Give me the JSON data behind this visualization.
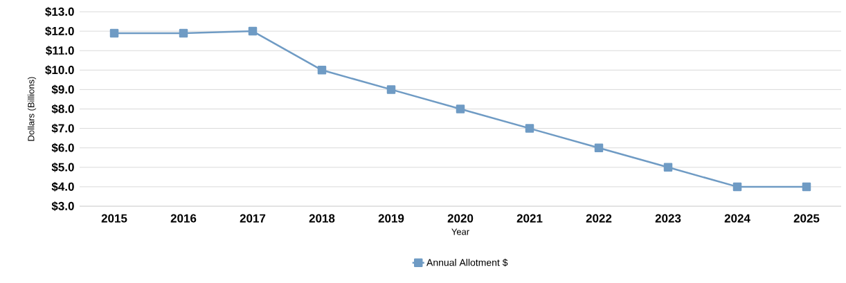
{
  "chart_data": {
    "type": "line",
    "xlabel": "Year",
    "ylabel": "Dollars (Billions)",
    "categories": [
      "2015",
      "2016",
      "2017",
      "2018",
      "2019",
      "2020",
      "2021",
      "2022",
      "2023",
      "2024",
      "2025"
    ],
    "series": [
      {
        "name": "Annual Allotment $",
        "color": "#6f9bc4",
        "values": [
          11.9,
          11.9,
          12.0,
          10.0,
          9.0,
          8.0,
          7.0,
          6.0,
          5.0,
          4.0,
          4.0
        ]
      }
    ],
    "ylim": [
      3,
      13
    ],
    "yticks": [
      {
        "value": 3,
        "label": "$3.0"
      },
      {
        "value": 4,
        "label": "$4.0"
      },
      {
        "value": 5,
        "label": "$5.0"
      },
      {
        "value": 6,
        "label": "$6.0"
      },
      {
        "value": 7,
        "label": "$7.0"
      },
      {
        "value": 8,
        "label": "$8.0"
      },
      {
        "value": 9,
        "label": "$9.0"
      },
      {
        "value": 10,
        "label": "$10.0"
      },
      {
        "value": 11,
        "label": "$11.0"
      },
      {
        "value": 12,
        "label": "$12.0"
      },
      {
        "value": 13,
        "label": "$13.0"
      }
    ],
    "grid": "y",
    "legend": "bottom",
    "marker": "square",
    "line_style": "solid"
  }
}
